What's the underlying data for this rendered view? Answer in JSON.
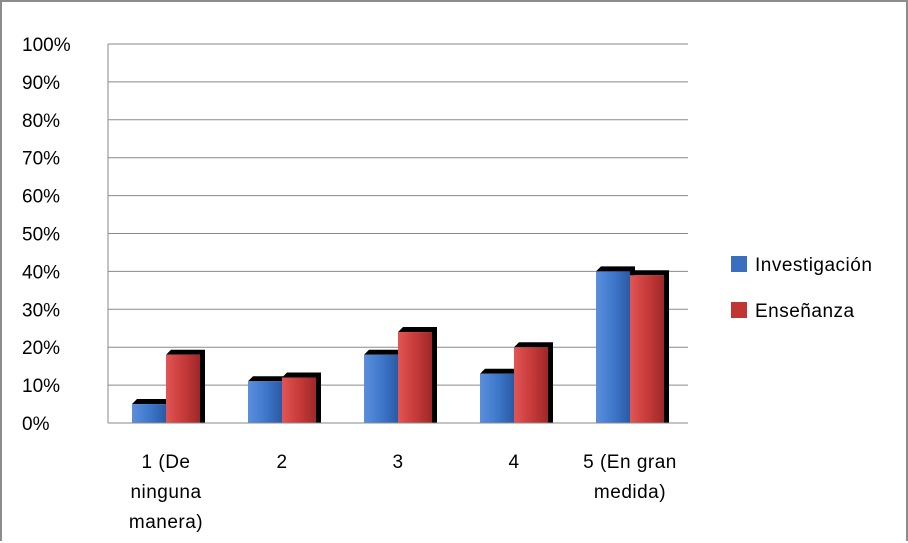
{
  "chart_data": {
    "type": "bar",
    "title": "",
    "xlabel": "",
    "ylabel": "",
    "categories": [
      [
        "1 (De",
        "ninguna",
        "manera)"
      ],
      [
        "2"
      ],
      [
        "3"
      ],
      [
        "4"
      ],
      [
        "5 (En gran",
        "medida)"
      ]
    ],
    "series": [
      {
        "name": "Investigación",
        "color": "#3a6fc0",
        "values": [
          5,
          11,
          18,
          13,
          40
        ]
      },
      {
        "name": "Enseñanza",
        "color": "#c23535",
        "values": [
          18,
          12,
          24,
          20,
          39
        ]
      }
    ],
    "ylim": [
      0,
      100
    ],
    "yticks": [
      "0%",
      "10%",
      "20%",
      "30%",
      "40%",
      "50%",
      "60%",
      "70%",
      "80%",
      "90%",
      "100%"
    ],
    "grid": true,
    "legend_position": "right"
  }
}
